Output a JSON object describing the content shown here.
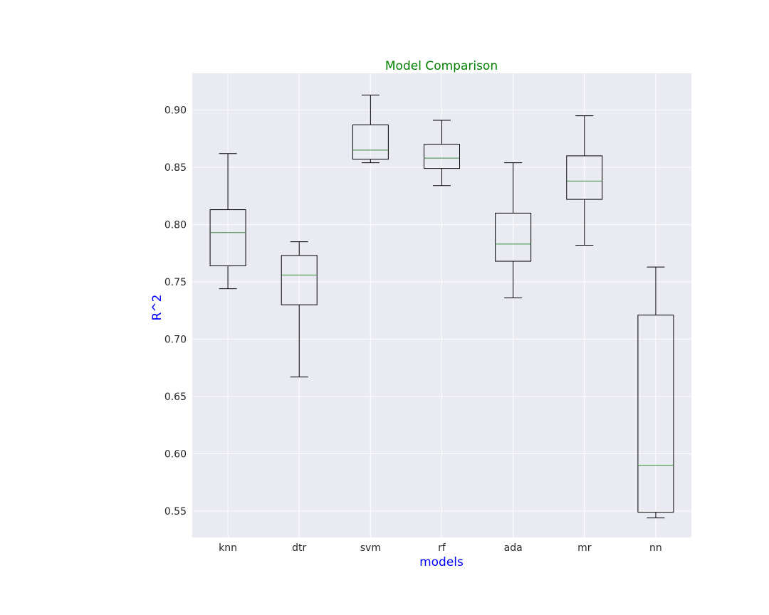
{
  "chart_data": {
    "type": "boxplot",
    "title": "Model Comparison",
    "xlabel": "models",
    "ylabel": "R^2",
    "categories": [
      "knn",
      "dtr",
      "svm",
      "rf",
      "ada",
      "mr",
      "nn"
    ],
    "boxes": [
      {
        "name": "knn",
        "whisker_low": 0.744,
        "q1": 0.764,
        "median": 0.793,
        "q3": 0.813,
        "whisker_high": 0.862
      },
      {
        "name": "dtr",
        "whisker_low": 0.667,
        "q1": 0.73,
        "median": 0.756,
        "q3": 0.773,
        "whisker_high": 0.785
      },
      {
        "name": "svm",
        "whisker_low": 0.854,
        "q1": 0.857,
        "median": 0.865,
        "q3": 0.887,
        "whisker_high": 0.913
      },
      {
        "name": "rf",
        "whisker_low": 0.834,
        "q1": 0.849,
        "median": 0.858,
        "q3": 0.87,
        "whisker_high": 0.891
      },
      {
        "name": "ada",
        "whisker_low": 0.736,
        "q1": 0.768,
        "median": 0.783,
        "q3": 0.81,
        "whisker_high": 0.854
      },
      {
        "name": "mr",
        "whisker_low": 0.782,
        "q1": 0.822,
        "median": 0.838,
        "q3": 0.86,
        "whisker_high": 0.895
      },
      {
        "name": "nn",
        "whisker_low": 0.544,
        "q1": 0.549,
        "median": 0.59,
        "q3": 0.721,
        "whisker_high": 0.763
      }
    ],
    "yticks": [
      "0.55",
      "0.60",
      "0.65",
      "0.70",
      "0.75",
      "0.80",
      "0.85",
      "0.90"
    ],
    "ylim": [
      0.527,
      0.932
    ],
    "grid": true,
    "colors": {
      "plot_background": "#eaeaf2",
      "grid": "#ffffff",
      "box": "#000000",
      "median": "#3a8a3a",
      "title": "#008000",
      "axis_labels": "#0000ff",
      "tick_labels": "#262626"
    }
  }
}
